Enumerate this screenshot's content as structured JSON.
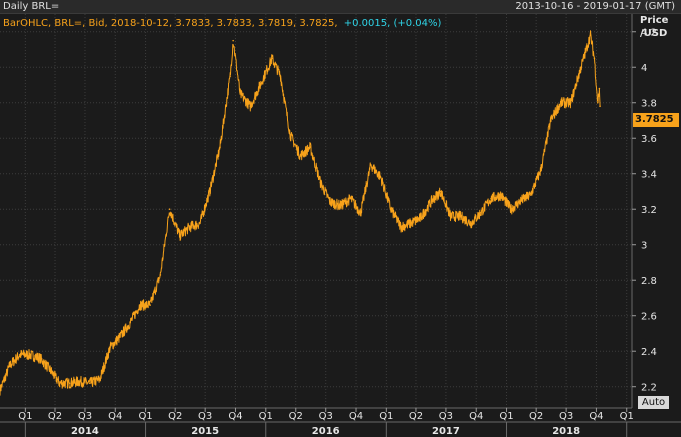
{
  "header": {
    "title": "Daily BRL=",
    "date_range": "2013-10-16 - 2019-01-17 (GMT)"
  },
  "legend": {
    "prefix": "BarOHLC, BRL=, Bid, 2018-10-12, 3.7833, 3.7833, 3.7819, 3.7825,",
    "change": "+0.0015, (+0.04%)",
    "prefix_color": "#f7a21b",
    "change_color": "#2fd3e6"
  },
  "axis": {
    "ylabel_line1": "Price",
    "ylabel_line2": "/USD",
    "auto_label": "Auto",
    "last_price": "3.7825"
  },
  "colors": {
    "background": "#1b1b1b",
    "series": "#f7a21b",
    "grid": "#3c3c3c"
  },
  "chart_data": {
    "type": "line",
    "title": "Daily BRL=",
    "ylabel": "Price /USD",
    "ylim": [
      2.08,
      4.3
    ],
    "yticks": [
      2.2,
      2.4,
      2.6,
      2.8,
      3.0,
      3.2,
      3.4,
      3.6,
      3.8,
      4.0,
      4.2
    ],
    "ytick_labels": [
      "2.2",
      "2.4",
      "2.6",
      "2.8",
      "3",
      "3.2",
      "3.4",
      "3.6",
      "3.8",
      "4",
      "4.2"
    ],
    "x_range": [
      "2013-10-16",
      "2019-01-17"
    ],
    "quarter_labels": [
      "Q1",
      "Q2",
      "Q3",
      "Q4",
      "Q1",
      "Q2",
      "Q3",
      "Q4",
      "Q1",
      "Q2",
      "Q3",
      "Q4",
      "Q1",
      "Q2",
      "Q3",
      "Q4",
      "Q1",
      "Q2",
      "Q3",
      "Q4",
      "Q1"
    ],
    "quarter_dates": [
      "2014-01-01",
      "2014-04-01",
      "2014-07-01",
      "2014-10-01",
      "2015-01-01",
      "2015-04-01",
      "2015-07-01",
      "2015-10-01",
      "2016-01-01",
      "2016-04-01",
      "2016-07-01",
      "2016-10-01",
      "2017-01-01",
      "2017-04-01",
      "2017-07-01",
      "2017-10-01",
      "2018-01-01",
      "2018-04-01",
      "2018-07-01",
      "2018-10-01",
      "2019-01-01"
    ],
    "year_labels": [
      "2014",
      "2015",
      "2016",
      "2017",
      "2018"
    ],
    "year_dates": [
      "2014-07-01",
      "2015-07-01",
      "2016-07-01",
      "2017-07-01",
      "2018-07-01"
    ],
    "grid": true,
    "series": [
      {
        "x": [
          "2013-10-16",
          "2013-11-15",
          "2013-12-15",
          "2014-01-15",
          "2014-02-15",
          "2014-03-15",
          "2014-04-15",
          "2014-05-15",
          "2014-06-15",
          "2014-07-15",
          "2014-08-15",
          "2014-09-15",
          "2014-10-15",
          "2014-11-15",
          "2014-12-15",
          "2015-01-15",
          "2015-02-15",
          "2015-03-15",
          "2015-04-15",
          "2015-05-15",
          "2015-06-15",
          "2015-07-15",
          "2015-08-15",
          "2015-09-15",
          "2015-09-24",
          "2015-10-15",
          "2015-11-15",
          "2015-12-15",
          "2016-01-20",
          "2016-02-15",
          "2016-03-15",
          "2016-04-15",
          "2016-05-15",
          "2016-06-15",
          "2016-07-15",
          "2016-08-15",
          "2016-09-15",
          "2016-10-15",
          "2016-11-15",
          "2016-12-15",
          "2017-01-15",
          "2017-02-15",
          "2017-03-15",
          "2017-04-15",
          "2017-05-20",
          "2017-06-15",
          "2017-07-15",
          "2017-08-15",
          "2017-09-15",
          "2017-10-15",
          "2017-11-15",
          "2017-12-15",
          "2018-01-15",
          "2018-02-15",
          "2018-03-15",
          "2018-04-15",
          "2018-05-15",
          "2018-06-15",
          "2018-07-15",
          "2018-08-15",
          "2018-09-13",
          "2018-09-25",
          "2018-10-05",
          "2018-10-10",
          "2018-10-12"
        ],
        "values": [
          2.18,
          2.32,
          2.38,
          2.38,
          2.36,
          2.3,
          2.22,
          2.22,
          2.23,
          2.22,
          2.24,
          2.42,
          2.48,
          2.56,
          2.66,
          2.66,
          2.83,
          3.2,
          3.05,
          3.1,
          3.12,
          3.3,
          3.55,
          3.95,
          4.15,
          3.85,
          3.78,
          3.9,
          4.05,
          3.95,
          3.62,
          3.5,
          3.55,
          3.35,
          3.24,
          3.22,
          3.26,
          3.18,
          3.45,
          3.38,
          3.2,
          3.1,
          3.12,
          3.15,
          3.25,
          3.3,
          3.16,
          3.16,
          3.12,
          3.18,
          3.26,
          3.28,
          3.2,
          3.25,
          3.28,
          3.42,
          3.7,
          3.8,
          3.8,
          4.0,
          4.18,
          4.05,
          3.8,
          3.88,
          3.78
        ]
      }
    ]
  }
}
